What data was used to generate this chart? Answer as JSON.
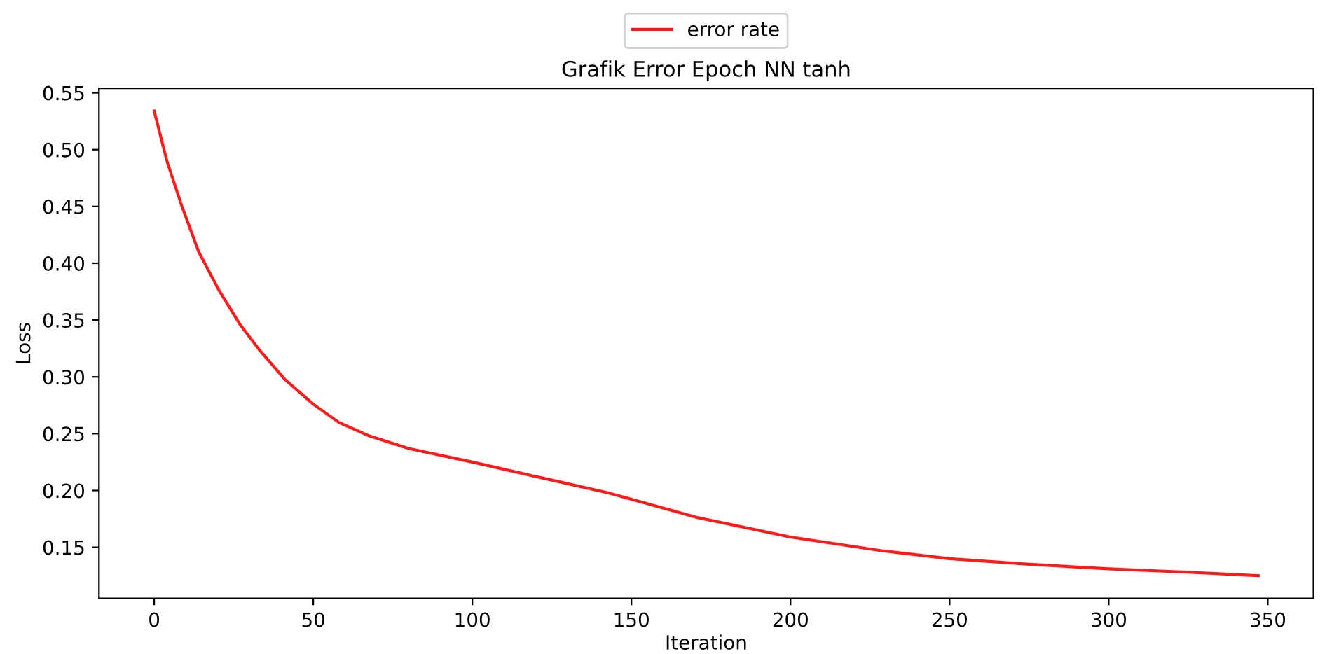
{
  "chart_data": {
    "type": "line",
    "title": "Grafik Error Epoch NN tanh",
    "xlabel": "Iteration",
    "ylabel": "Loss",
    "series": [
      {
        "name": "error rate",
        "color": "#ff0000",
        "x": [
          0,
          4,
          8.6,
          14,
          20.4,
          27,
          33.3,
          41,
          50,
          58,
          67.6,
          80,
          100,
          122,
          142.6,
          150.4,
          171,
          200,
          228.6,
          250,
          275,
          300,
          325,
          347
        ],
        "values": [
          0.534,
          0.49,
          0.451,
          0.41,
          0.376,
          0.346,
          0.323,
          0.298,
          0.276,
          0.26,
          0.248,
          0.237,
          0.225,
          0.211,
          0.198,
          0.192,
          0.176,
          0.159,
          0.147,
          0.14,
          0.135,
          0.131,
          0.128,
          0.125
        ]
      }
    ],
    "xlim": [
      -17.35,
      364.35
    ],
    "ylim": [
      0.105,
      0.554
    ],
    "xticks": [
      0,
      50,
      100,
      150,
      200,
      250,
      300,
      350
    ],
    "yticks": [
      0.15,
      {
        "value": 0.2,
        "label": "0.20"
      },
      0.25,
      {
        "value": 0.3,
        "label": "0.30"
      },
      0.35,
      {
        "value": 0.4,
        "label": "0.40"
      },
      0.45,
      {
        "value": 0.5,
        "label": "0.50"
      },
      0.55
    ],
    "legend": "top",
    "grid": false
  }
}
